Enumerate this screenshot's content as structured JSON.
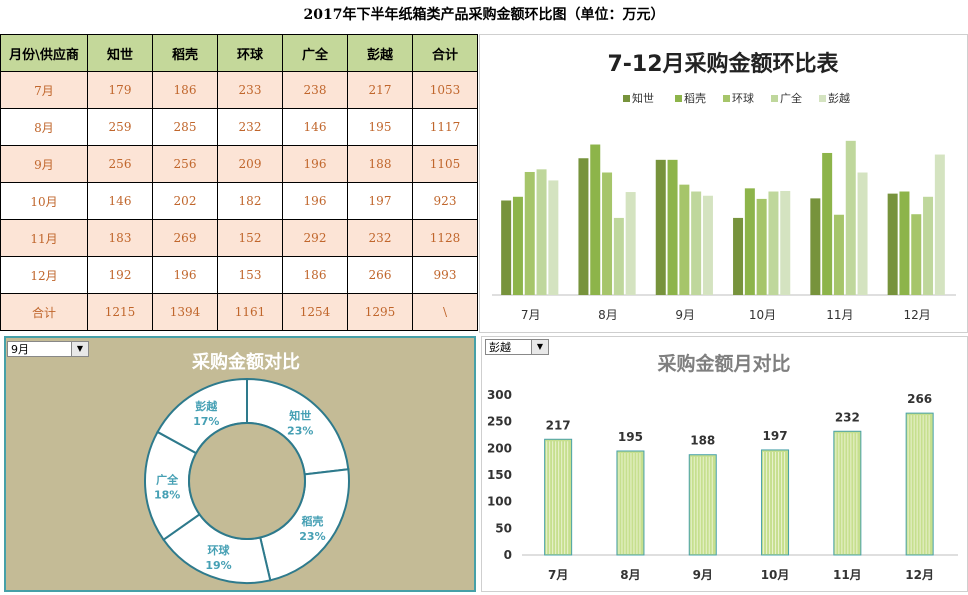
{
  "title": "2017年下半年纸箱类产品采购金额环比图（单位：万元）",
  "table": {
    "header": [
      "月份\\供应商",
      "知世",
      "稻壳",
      "环球",
      "广全",
      "彭越",
      "合计"
    ],
    "rows": [
      [
        "7月",
        "179",
        "186",
        "233",
        "238",
        "217",
        "1053"
      ],
      [
        "8月",
        "259",
        "285",
        "232",
        "146",
        "195",
        "1117"
      ],
      [
        "9月",
        "256",
        "256",
        "209",
        "196",
        "188",
        "1105"
      ],
      [
        "10月",
        "146",
        "202",
        "182",
        "196",
        "197",
        "923"
      ],
      [
        "11月",
        "183",
        "269",
        "152",
        "292",
        "232",
        "1128"
      ],
      [
        "12月",
        "192",
        "196",
        "153",
        "186",
        "266",
        "993"
      ],
      [
        "合计",
        "1215",
        "1394",
        "1161",
        "1254",
        "1295",
        "\\"
      ]
    ]
  },
  "colors": {
    "header_bg": "#c4d89a",
    "stripe_bg": "#fce4d6",
    "cell_text": "#c0662c",
    "donut_bg": "#c4bb96",
    "donut_border": "#2e7a8c",
    "donut_label": "#46a0b4",
    "bar_green": "#c6df8e",
    "bar_stroke": "#46a0a8"
  },
  "chart_data": [
    {
      "type": "bar",
      "title": "7-12月采购金额环比表",
      "categories": [
        "7月",
        "8月",
        "9月",
        "10月",
        "11月",
        "12月"
      ],
      "series": [
        {
          "name": "知世",
          "color": "#77933c",
          "values": [
            179,
            259,
            256,
            146,
            183,
            192
          ]
        },
        {
          "name": "稻壳",
          "color": "#8db44a",
          "values": [
            186,
            285,
            256,
            202,
            269,
            196
          ]
        },
        {
          "name": "环球",
          "color": "#a6c56a",
          "values": [
            233,
            232,
            209,
            182,
            152,
            153
          ]
        },
        {
          "name": "广全",
          "color": "#bfd79c",
          "values": [
            238,
            146,
            196,
            196,
            292,
            186
          ]
        },
        {
          "name": "彭越",
          "color": "#d4e3c0",
          "values": [
            217,
            195,
            188,
            197,
            232,
            266
          ]
        }
      ],
      "legend_position": "top"
    },
    {
      "type": "pie",
      "title": "采购金额对比",
      "selector_value": "9月",
      "slices": [
        {
          "label": "知世",
          "value": 256,
          "pct": "23%"
        },
        {
          "label": "稻壳",
          "value": 256,
          "pct": "23%"
        },
        {
          "label": "环球",
          "value": 209,
          "pct": "19%"
        },
        {
          "label": "广全",
          "value": 196,
          "pct": "18%"
        },
        {
          "label": "彭越",
          "value": 188,
          "pct": "17%"
        }
      ]
    },
    {
      "type": "bar",
      "title": "采购金额月对比",
      "selector_value": "彭越",
      "categories": [
        "7月",
        "8月",
        "9月",
        "10月",
        "11月",
        "12月"
      ],
      "values": [
        217,
        195,
        188,
        197,
        232,
        266
      ],
      "data_labels": [
        "217",
        "195",
        "188",
        "197",
        "232",
        "266"
      ],
      "ylim": [
        0,
        300
      ],
      "yticks": [
        "0",
        "50",
        "100",
        "150",
        "200",
        "250",
        "300"
      ]
    }
  ]
}
